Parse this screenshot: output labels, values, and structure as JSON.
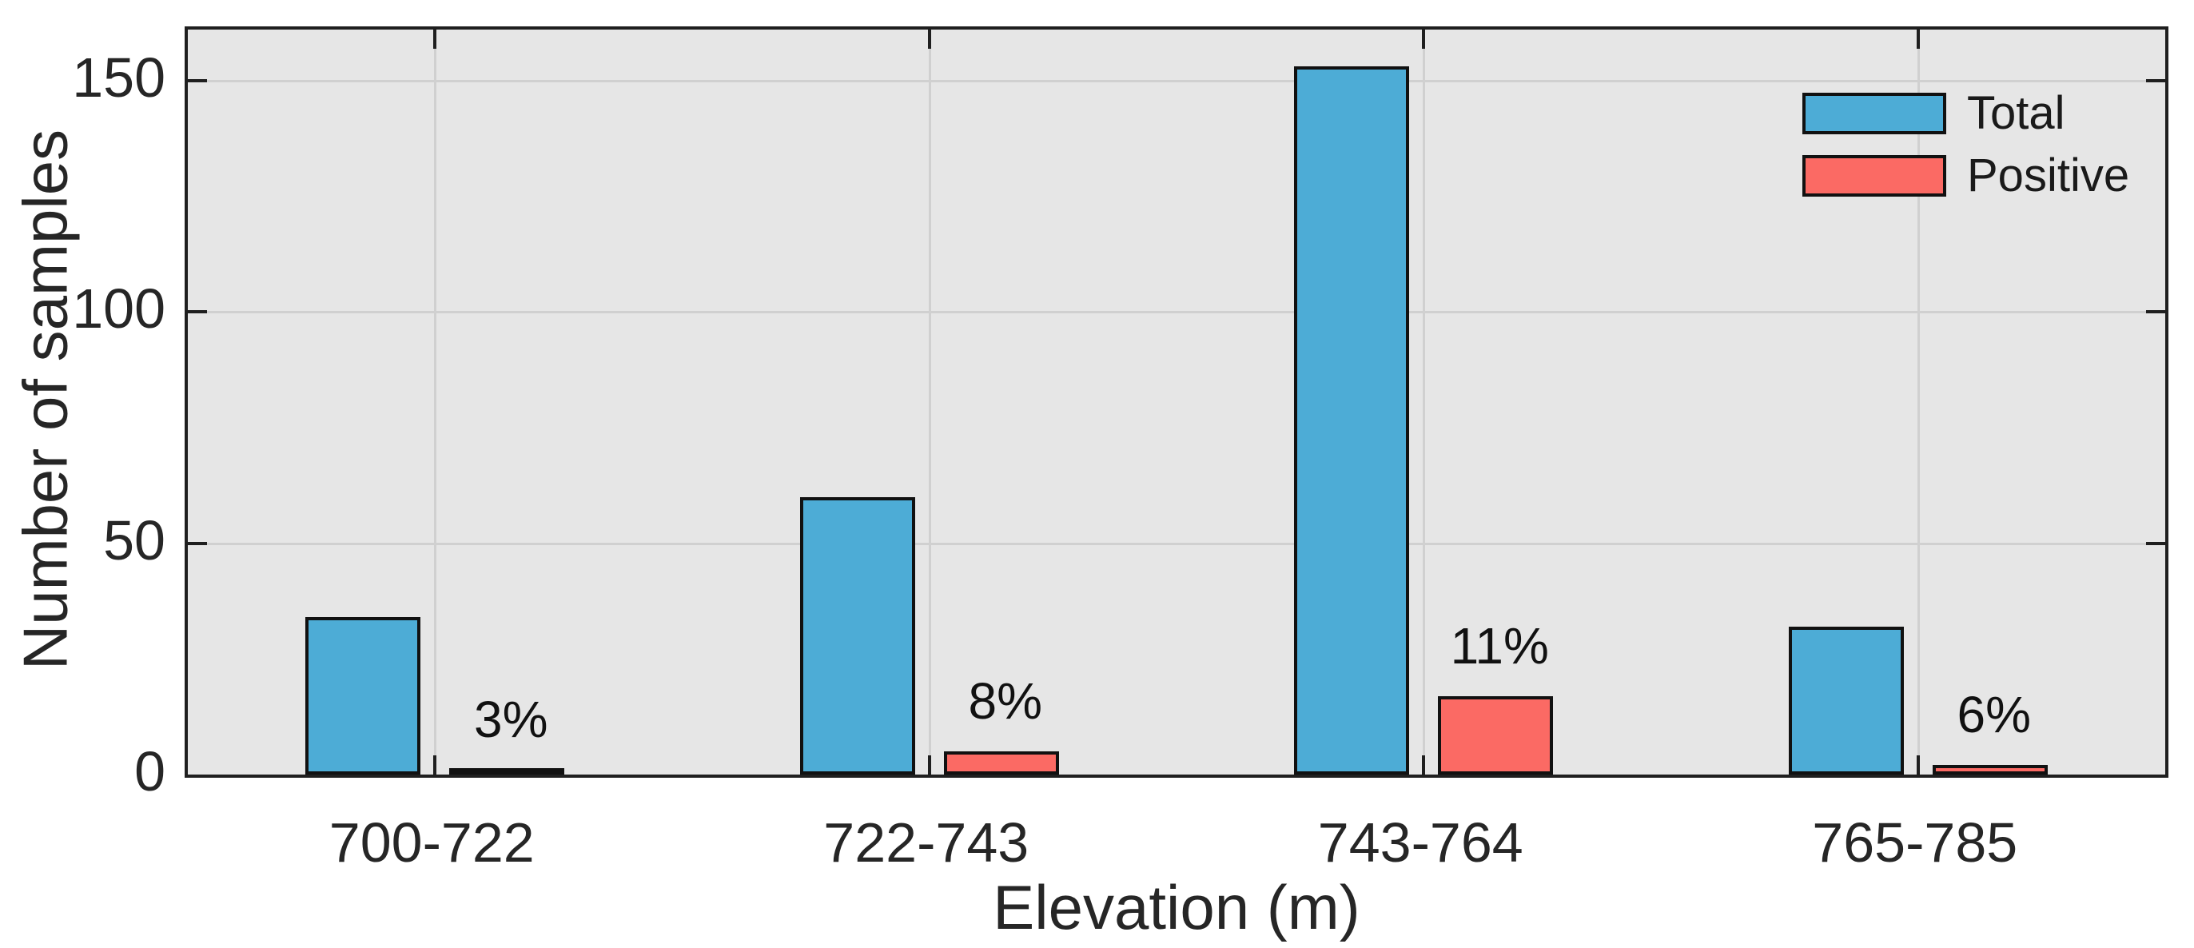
{
  "chart_data": {
    "type": "bar",
    "title": "",
    "xlabel": "Elevation (m)",
    "ylabel": "Number of samples",
    "categories": [
      "700-722",
      "722-743",
      "743-764",
      "765-785"
    ],
    "series": [
      {
        "name": "Total",
        "color": "#4DACD6",
        "values": [
          34,
          60,
          153,
          32
        ]
      },
      {
        "name": "Positive",
        "color": "#FB6A64",
        "values": [
          1,
          5,
          17,
          2
        ]
      }
    ],
    "bar_annotations": {
      "series": "Positive",
      "labels": [
        "3%",
        "8%",
        "11%",
        "6%"
      ]
    },
    "yticks": [
      0,
      50,
      100,
      150
    ],
    "ylim": [
      0,
      161
    ],
    "grid": true,
    "legend_position": "top-right",
    "colors": {
      "plot_background": "#E6E6E6",
      "gridline": "#D0D0D0",
      "axis_line": "#1F1F1F",
      "text": "#262626",
      "bar_edge": "#111111"
    }
  },
  "legend": {
    "entries": [
      "Total",
      "Positive"
    ]
  }
}
